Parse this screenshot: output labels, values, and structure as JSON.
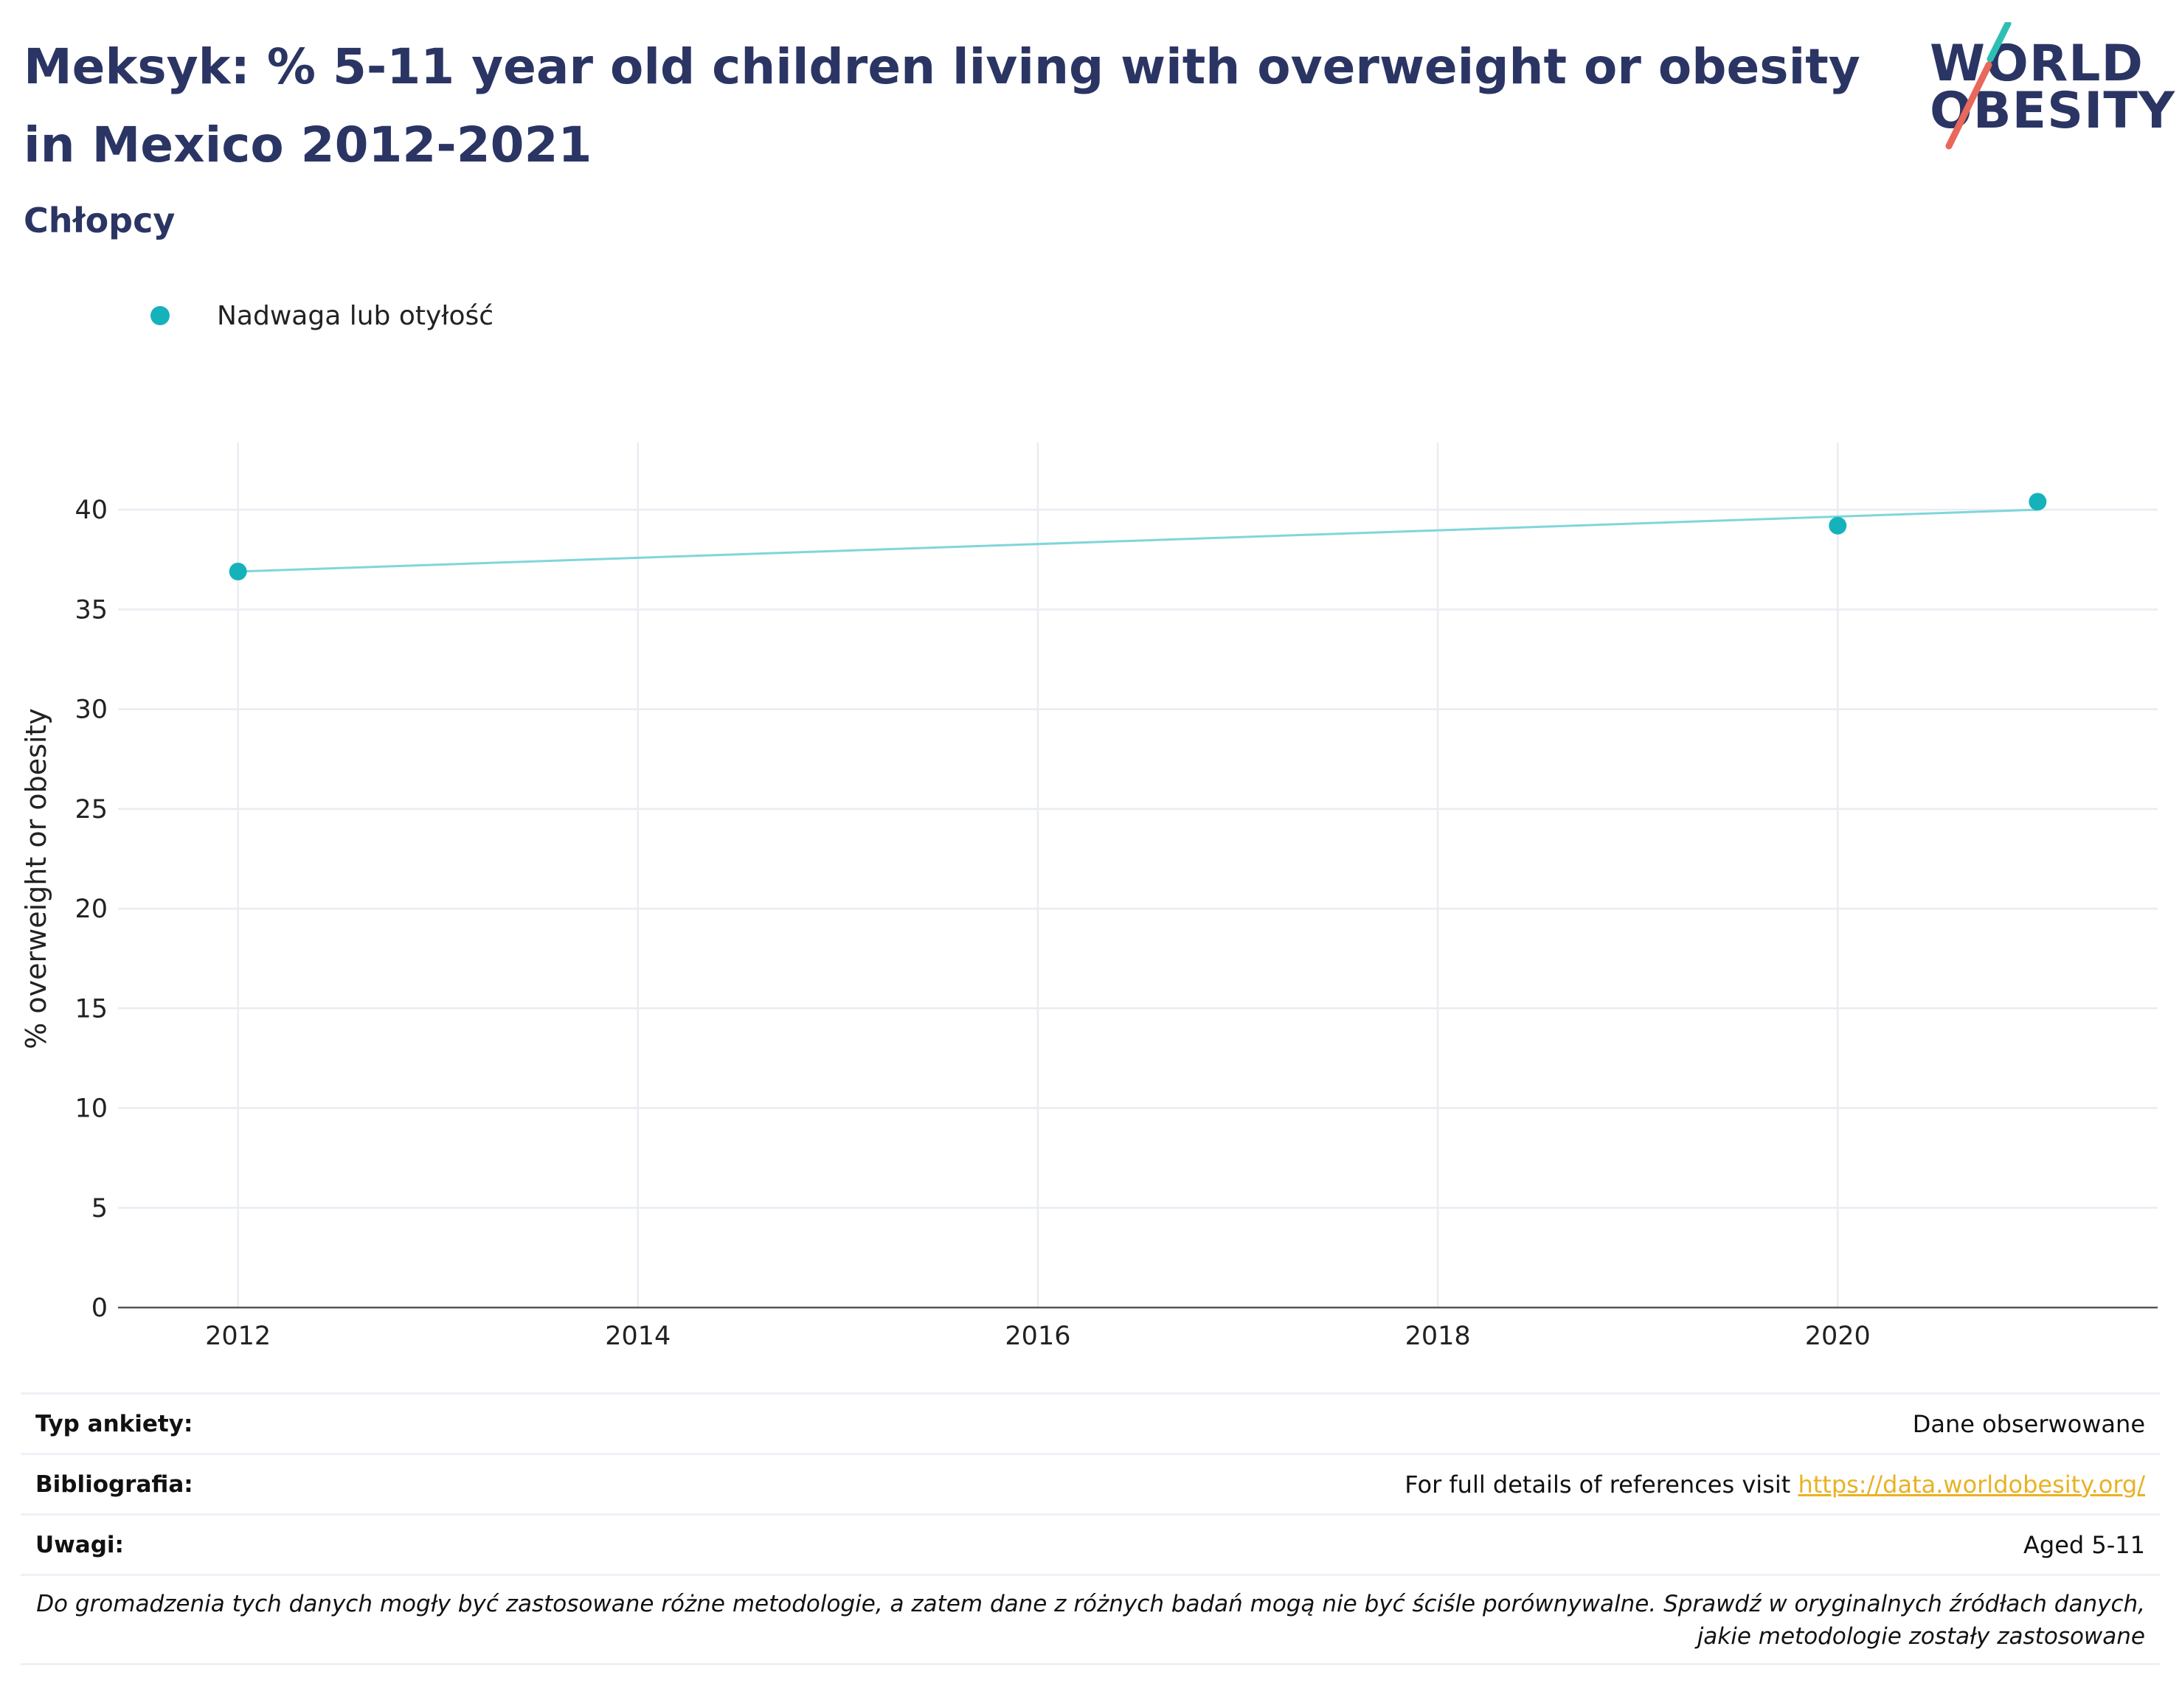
{
  "header": {
    "title": "Meksyk: % 5-11 year old children living with overweight or obesity in Mexico 2012-2021",
    "subtitle": "Chłopcy"
  },
  "logo": {
    "line1": "WORLD",
    "line2": "OBESITY",
    "accent_teal": "#2ebfb4",
    "accent_coral": "#e8685b"
  },
  "legend": {
    "marker_color": "#16b2bc"
  },
  "chart_data": {
    "type": "scatter",
    "title": "",
    "xlabel": "",
    "ylabel": "% overweight or obesity",
    "xlim": [
      2011.4,
      2021.6
    ],
    "ylim": [
      0,
      43
    ],
    "x_ticks": [
      2012,
      2014,
      2016,
      2018,
      2020
    ],
    "y_ticks": [
      0,
      5,
      10,
      15,
      20,
      25,
      30,
      35,
      40
    ],
    "grid": true,
    "legend_position": "top-left",
    "series": [
      {
        "name": "Nadwaga lub otyłość",
        "color": "#16b2bc",
        "points": [
          {
            "x": 2012,
            "y": 36.9
          },
          {
            "x": 2020,
            "y": 39.2
          },
          {
            "x": 2021,
            "y": 40.4
          }
        ]
      }
    ],
    "trendline": {
      "color": "#7fd6da",
      "x": [
        2012,
        2021
      ],
      "y": [
        36.9,
        40.0
      ]
    }
  },
  "info": {
    "survey_type": {
      "label": "Typ ankiety:",
      "value": "Dane obserwowane"
    },
    "bibliography": {
      "label": "Bibliografia:",
      "value": "For full details of references visit ",
      "link": "https://data.worldobesity.org/"
    },
    "notes": {
      "label": "Uwagi:",
      "value": "Aged 5-11"
    },
    "disclaimer": "Do gromadzenia tych danych mogły być zastosowane różne metodologie, a zatem dane z różnych badań mogą nie być ściśle porównywalne. Sprawdź w oryginalnych źródłach danych, jakie metodologie zostały zastosowane"
  }
}
